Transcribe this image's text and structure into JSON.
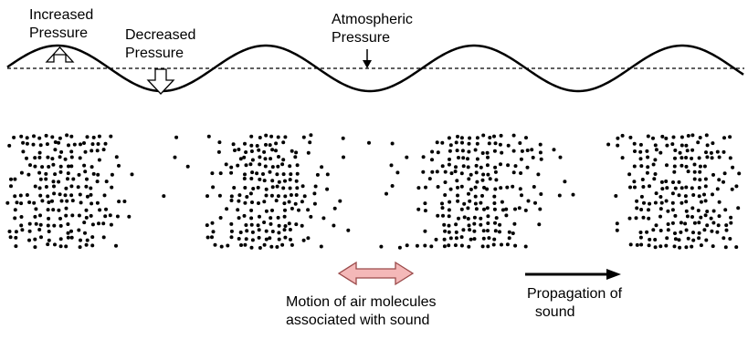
{
  "labels": {
    "increased_pressure": "Increased\nPressure",
    "decreased_pressure": "Decreased\nPressure",
    "atmospheric_pressure": "Atmospheric\nPressure",
    "motion_of_air_molecules": "Motion of air molecules\nassociated with sound",
    "propagation_of_sound": "Propagation of\n  sound"
  },
  "colors": {
    "ink": "#000000",
    "double_arrow_fill": "#f4b8b8",
    "double_arrow_stroke": "#9a4a4a",
    "hollow_arrow_fill": "#ffffff",
    "background": "#ffffff"
  },
  "icons": {
    "up_arrow": "hollow-up-arrow-icon",
    "down_arrow": "hollow-down-arrow-icon",
    "small_down_arrow": "small-down-arrow-icon",
    "double_arrow": "double-headed-arrow-icon",
    "propagation_arrow": "right-arrow-icon"
  }
}
